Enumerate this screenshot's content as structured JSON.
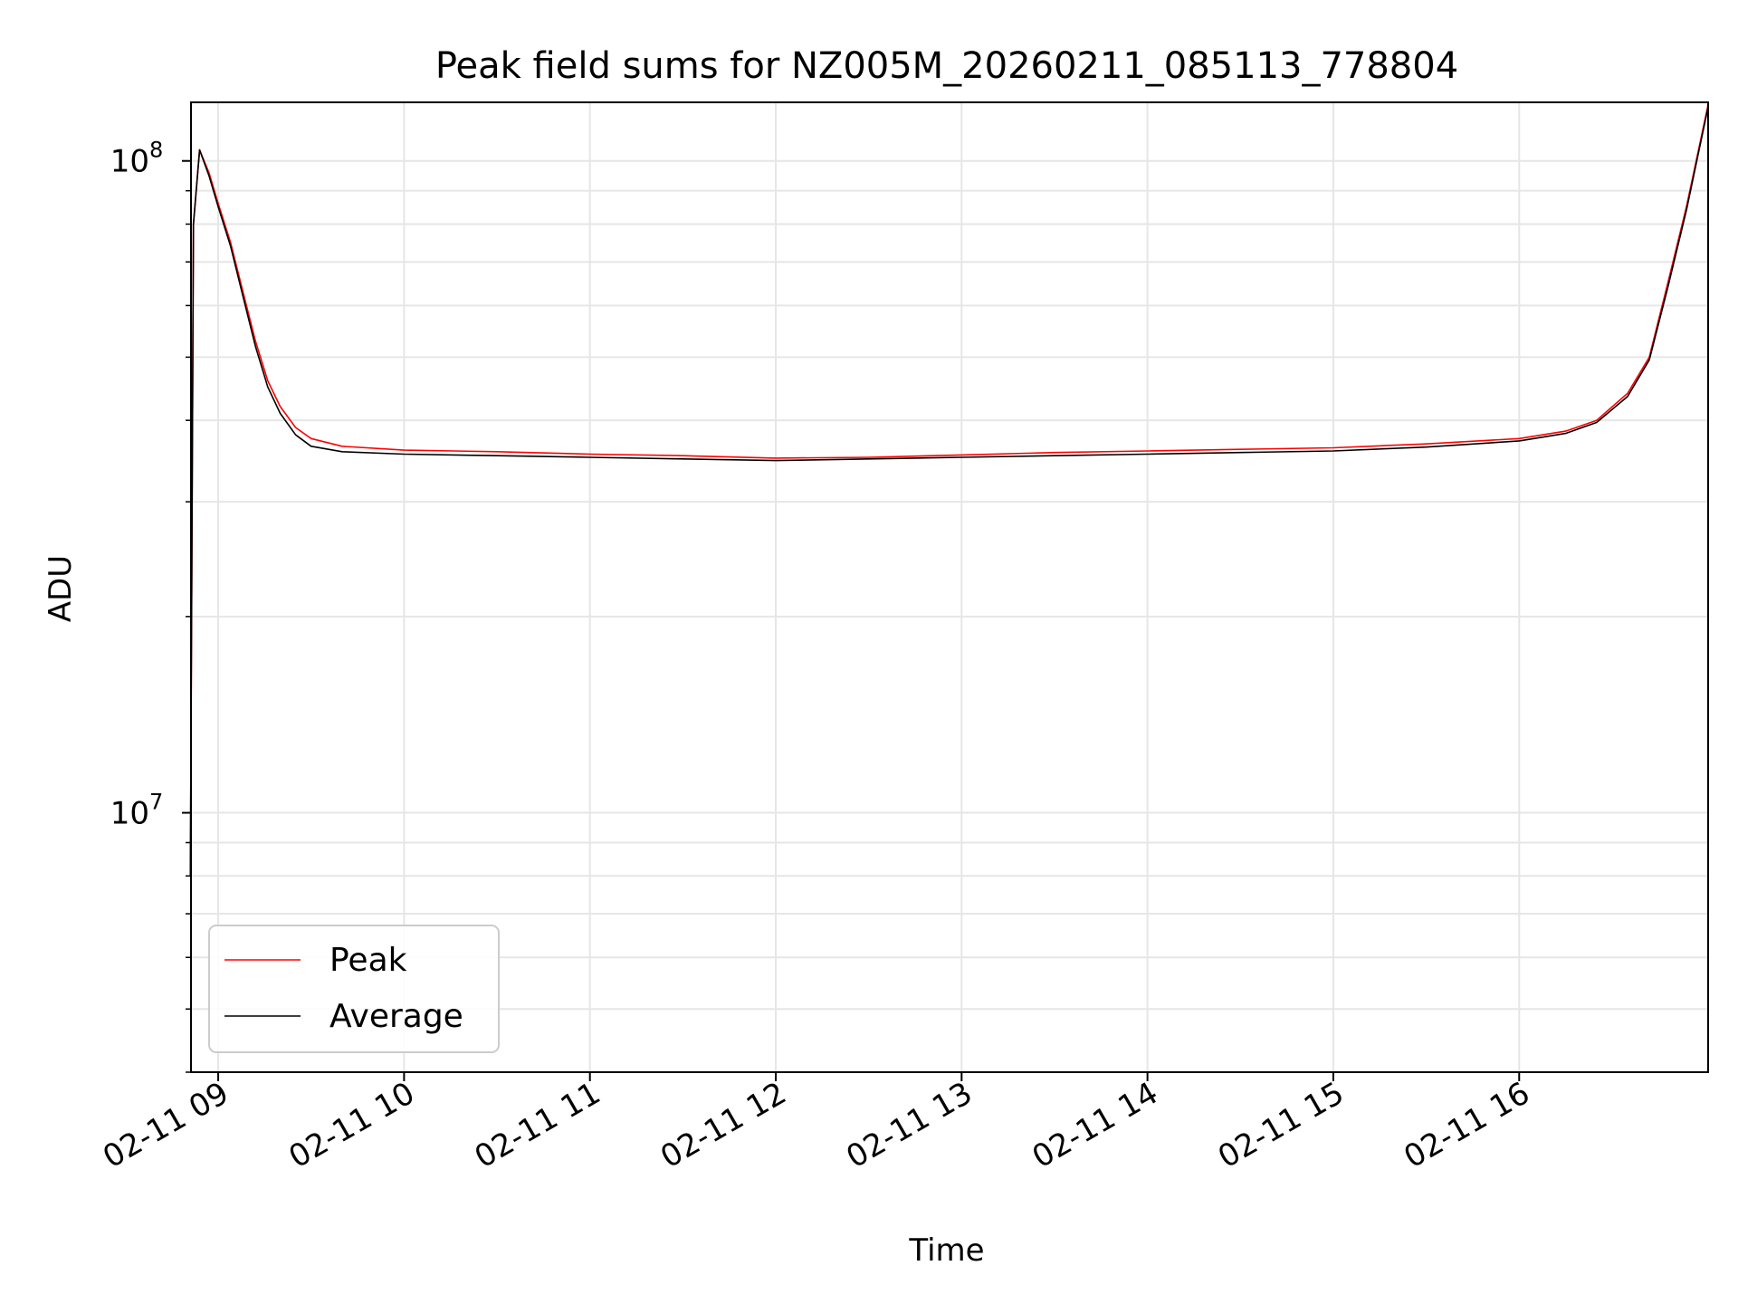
{
  "chart_data": {
    "type": "line",
    "title": "Peak field sums for NZ005M_20260211_085113_778804",
    "xlabel": "Time",
    "ylabel": "ADU",
    "x_axis": "time",
    "y_scale": "log",
    "xlim": [
      "2026-02-11 08:51:13",
      "2026-02-11 17:01:00"
    ],
    "ylim": [
      4000000,
      123000000
    ],
    "x_ticks": [
      {
        "t": "2026-02-11 09:00",
        "label": "02-11 09"
      },
      {
        "t": "2026-02-11 10:00",
        "label": "02-11 10"
      },
      {
        "t": "2026-02-11 11:00",
        "label": "02-11 11"
      },
      {
        "t": "2026-02-11 12:00",
        "label": "02-11 12"
      },
      {
        "t": "2026-02-11 13:00",
        "label": "02-11 13"
      },
      {
        "t": "2026-02-11 14:00",
        "label": "02-11 14"
      },
      {
        "t": "2026-02-11 15:00",
        "label": "02-11 15"
      },
      {
        "t": "2026-02-11 16:00",
        "label": "02-11 16"
      }
    ],
    "y_ticks": [
      {
        "v": 100000000,
        "base": "10",
        "exp": "8"
      },
      {
        "v": 10000000,
        "base": "10",
        "exp": "7"
      }
    ],
    "grid": true,
    "legend": {
      "placement": "lower-left"
    },
    "series": [
      {
        "name": "Peak",
        "color": "#ff0000",
        "points": [
          [
            "2026-02-11 08:51",
            8000000
          ],
          [
            "2026-02-11 08:52",
            80000000
          ],
          [
            "2026-02-11 08:54",
            104000000
          ],
          [
            "2026-02-11 08:57",
            96000000
          ],
          [
            "2026-02-11 09:00",
            86000000
          ],
          [
            "2026-02-11 09:04",
            75000000
          ],
          [
            "2026-02-11 09:08",
            63000000
          ],
          [
            "2026-02-11 09:12",
            53000000
          ],
          [
            "2026-02-11 09:16",
            46000000
          ],
          [
            "2026-02-11 09:20",
            42000000
          ],
          [
            "2026-02-11 09:25",
            39000000
          ],
          [
            "2026-02-11 09:30",
            37500000
          ],
          [
            "2026-02-11 09:40",
            36500000
          ],
          [
            "2026-02-11 10:00",
            36000000
          ],
          [
            "2026-02-11 10:30",
            35800000
          ],
          [
            "2026-02-11 11:00",
            35500000
          ],
          [
            "2026-02-11 11:30",
            35300000
          ],
          [
            "2026-02-11 12:00",
            35000000
          ],
          [
            "2026-02-11 12:30",
            35100000
          ],
          [
            "2026-02-11 13:00",
            35400000
          ],
          [
            "2026-02-11 13:30",
            35700000
          ],
          [
            "2026-02-11 14:00",
            35900000
          ],
          [
            "2026-02-11 14:30",
            36100000
          ],
          [
            "2026-02-11 15:00",
            36300000
          ],
          [
            "2026-02-11 15:30",
            36800000
          ],
          [
            "2026-02-11 16:00",
            37500000
          ],
          [
            "2026-02-11 16:15",
            38500000
          ],
          [
            "2026-02-11 16:25",
            40000000
          ],
          [
            "2026-02-11 16:35",
            44000000
          ],
          [
            "2026-02-11 16:42",
            50000000
          ],
          [
            "2026-02-11 16:48",
            65000000
          ],
          [
            "2026-02-11 16:54",
            85000000
          ],
          [
            "2026-02-11 17:01",
            122000000
          ]
        ]
      },
      {
        "name": "Average",
        "color": "#000000",
        "points": [
          [
            "2026-02-11 08:51",
            8000000
          ],
          [
            "2026-02-11 08:52",
            80000000
          ],
          [
            "2026-02-11 08:54",
            104000000
          ],
          [
            "2026-02-11 08:57",
            95000000
          ],
          [
            "2026-02-11 09:00",
            85000000
          ],
          [
            "2026-02-11 09:04",
            74000000
          ],
          [
            "2026-02-11 09:08",
            62000000
          ],
          [
            "2026-02-11 09:12",
            52000000
          ],
          [
            "2026-02-11 09:16",
            45000000
          ],
          [
            "2026-02-11 09:20",
            41000000
          ],
          [
            "2026-02-11 09:25",
            38000000
          ],
          [
            "2026-02-11 09:30",
            36500000
          ],
          [
            "2026-02-11 09:40",
            35800000
          ],
          [
            "2026-02-11 10:00",
            35500000
          ],
          [
            "2026-02-11 10:30",
            35300000
          ],
          [
            "2026-02-11 11:00",
            35100000
          ],
          [
            "2026-02-11 11:30",
            34900000
          ],
          [
            "2026-02-11 12:00",
            34700000
          ],
          [
            "2026-02-11 12:30",
            34900000
          ],
          [
            "2026-02-11 13:00",
            35100000
          ],
          [
            "2026-02-11 13:30",
            35300000
          ],
          [
            "2026-02-11 14:00",
            35500000
          ],
          [
            "2026-02-11 14:30",
            35700000
          ],
          [
            "2026-02-11 15:00",
            35900000
          ],
          [
            "2026-02-11 15:30",
            36400000
          ],
          [
            "2026-02-11 16:00",
            37200000
          ],
          [
            "2026-02-11 16:15",
            38200000
          ],
          [
            "2026-02-11 16:25",
            39700000
          ],
          [
            "2026-02-11 16:35",
            43500000
          ],
          [
            "2026-02-11 16:42",
            49500000
          ],
          [
            "2026-02-11 16:48",
            64000000
          ],
          [
            "2026-02-11 16:54",
            84000000
          ],
          [
            "2026-02-11 17:01",
            121000000
          ]
        ]
      }
    ]
  }
}
